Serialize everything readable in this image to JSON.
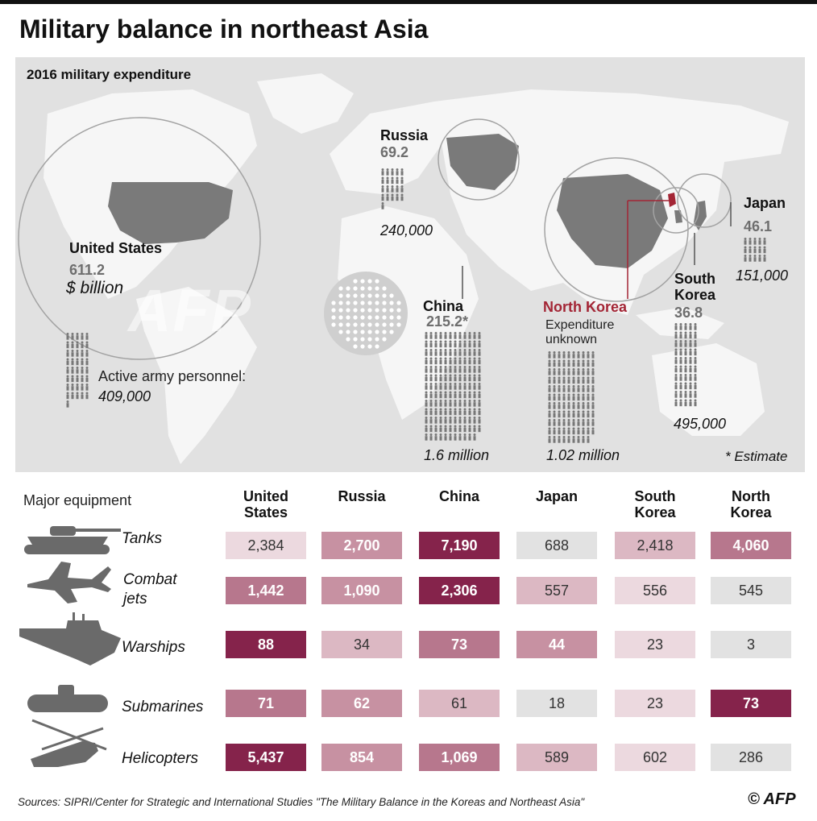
{
  "title": "Military balance in northeast Asia",
  "map": {
    "subtitle": "2016 military expenditure",
    "unit": "$ billion",
    "personnel_label": "Active army personnel:",
    "estimate_note": "* Estimate",
    "watermark": "AFP",
    "countries": {
      "usa": {
        "name": "United States",
        "spend": "611.2",
        "personnel": "409,000"
      },
      "russia": {
        "name": "Russia",
        "spend": "69.2",
        "personnel": "240,000"
      },
      "china": {
        "name": "China",
        "spend": "215.2*",
        "personnel": "1.6 million"
      },
      "north_korea": {
        "name": "North Korea",
        "note": "Expenditure unknown",
        "personnel": "1.02 million"
      },
      "south_korea": {
        "name_line1": "South",
        "name_line2": "Korea",
        "spend": "36.8",
        "personnel": "495,000"
      },
      "japan": {
        "name": "Japan",
        "spend": "46.1",
        "personnel": "151,000"
      }
    }
  },
  "table": {
    "label": "Major equipment",
    "columns": [
      {
        "l1": "United",
        "l2": "States"
      },
      {
        "l1": "Russia",
        "l2": ""
      },
      {
        "l1": "China",
        "l2": ""
      },
      {
        "l1": "Japan",
        "l2": ""
      },
      {
        "l1": "South",
        "l2": "Korea"
      },
      {
        "l1": "North",
        "l2": "Korea"
      }
    ],
    "rows": [
      {
        "label": "Tanks",
        "icon": "tank-icon",
        "values": [
          "2,384",
          "2,700",
          "7,190",
          "688",
          "2,418",
          "4,060"
        ]
      },
      {
        "label_l1": "Combat",
        "label_l2": "jets",
        "icon": "jet-icon",
        "values": [
          "1,442",
          "1,090",
          "2,306",
          "557",
          "556",
          "545"
        ]
      },
      {
        "label": "Warships",
        "icon": "warship-icon",
        "values": [
          "88",
          "34",
          "73",
          "44",
          "23",
          "3"
        ]
      },
      {
        "label": "Submarines",
        "icon": "submarine-icon",
        "values": [
          "71",
          "62",
          "61",
          "18",
          "23",
          "73"
        ]
      },
      {
        "label": "Helicopters",
        "icon": "helicopter-icon",
        "values": [
          "5,437",
          "854",
          "1,069",
          "589",
          "602",
          "286"
        ]
      }
    ],
    "shades": [
      [
        "#ecd9df",
        "#c791a2",
        "#85234b",
        "#e2e2e2",
        "#dcb8c3",
        "#b7778d"
      ],
      [
        "#b7778d",
        "#c791a2",
        "#85234b",
        "#dcb8c3",
        "#ecd9df",
        "#e2e2e2"
      ],
      [
        "#85234b",
        "#dcb8c3",
        "#b7778d",
        "#c791a2",
        "#ecd9df",
        "#e2e2e2"
      ],
      [
        "#b7778d",
        "#c791a2",
        "#dcb8c3",
        "#e2e2e2",
        "#ecd9df",
        "#85234b"
      ],
      [
        "#85234b",
        "#c791a2",
        "#b7778d",
        "#dcb8c3",
        "#ecd9df",
        "#e2e2e2"
      ]
    ]
  },
  "chart_data": {
    "type": "table",
    "title": "Military balance in northeast Asia",
    "expenditure_2016_usd_billion": {
      "United States": 611.2,
      "Russia": 69.2,
      "China": 215.2,
      "Japan": 46.1,
      "South Korea": 36.8,
      "North Korea": null
    },
    "active_army_personnel": {
      "United States": "409,000",
      "Russia": "240,000",
      "China": "1.6 million",
      "North Korea": "1.02 million",
      "South Korea": "495,000",
      "Japan": "151,000"
    },
    "columns": [
      "United States",
      "Russia",
      "China",
      "Japan",
      "South Korea",
      "North Korea"
    ],
    "equipment": {
      "Tanks": [
        2384,
        2700,
        7190,
        688,
        2418,
        4060
      ],
      "Combat jets": [
        1442,
        1090,
        2306,
        557,
        556,
        545
      ],
      "Warships": [
        88,
        34,
        73,
        44,
        23,
        3
      ],
      "Submarines": [
        71,
        62,
        61,
        18,
        23,
        73
      ],
      "Helicopters": [
        5437,
        854,
        1069,
        589,
        602,
        286
      ]
    }
  },
  "source": "Sources: SIPRI/Center for Strategic and International Studies \"The Military Balance in the Koreas and Northeast Asia\"",
  "credit": "© AFP"
}
